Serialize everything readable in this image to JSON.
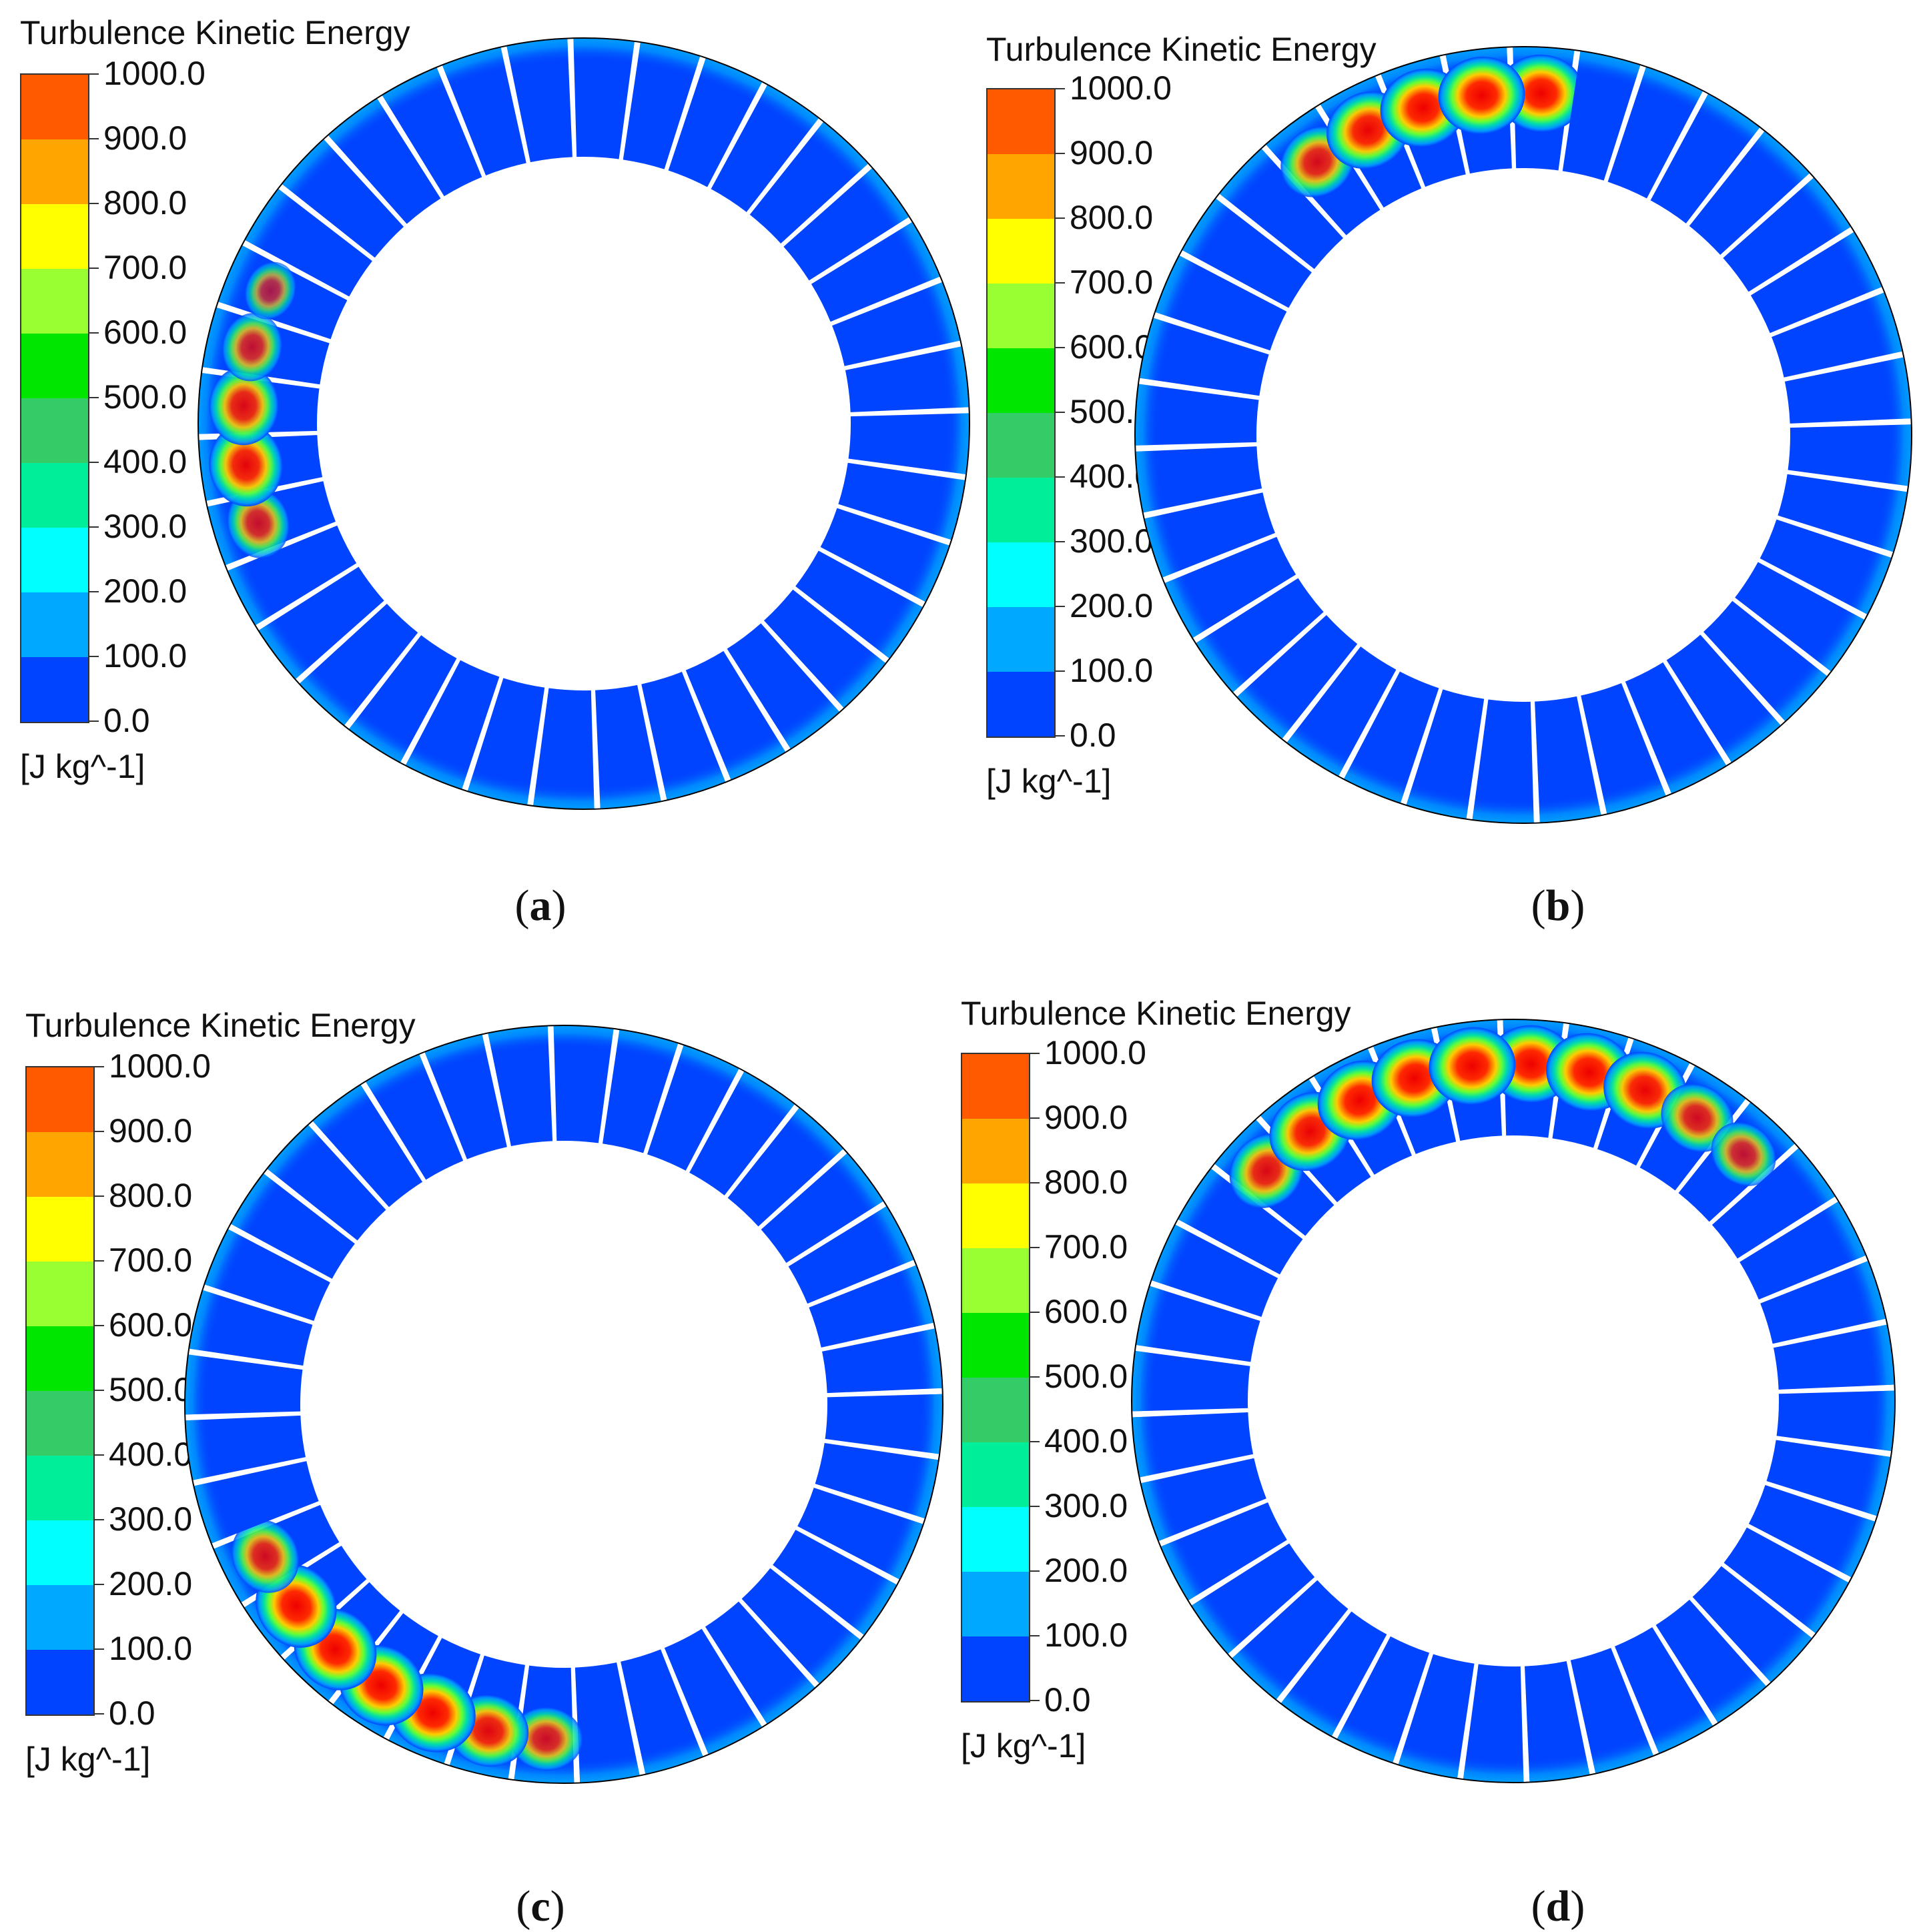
{
  "figure": {
    "panels": [
      {
        "id": "a",
        "legend_title": "Turbulence Kinetic Energy",
        "unit": "[J kg^-1]",
        "caption_letter": "a",
        "hot_sectors": [
          {
            "sector": 25,
            "intensity": 0.6
          },
          {
            "sector": 26,
            "intensity": 0.9
          },
          {
            "sector": 27,
            "intensity": 0.8
          },
          {
            "sector": 28,
            "intensity": 0.55
          },
          {
            "sector": 29,
            "intensity": 0.3
          }
        ]
      },
      {
        "id": "b",
        "legend_title": "Turbulence Kinetic Energy",
        "unit": "[J kg^-1]",
        "caption_letter": "b",
        "hot_sectors": [
          {
            "sector": 0,
            "intensity": 1.0
          },
          {
            "sector": 35,
            "intensity": 1.0
          },
          {
            "sector": 34,
            "intensity": 1.0
          },
          {
            "sector": 33,
            "intensity": 0.95
          },
          {
            "sector": 32,
            "intensity": 0.75
          }
        ]
      },
      {
        "id": "c",
        "legend_title": "Turbulence Kinetic Energy",
        "unit": "[J kg^-1]",
        "caption_letter": "c",
        "hot_sectors": [
          {
            "sector": 24,
            "intensity": 0.7
          },
          {
            "sector": 23,
            "intensity": 1.0
          },
          {
            "sector": 22,
            "intensity": 1.0
          },
          {
            "sector": 21,
            "intensity": 1.0
          },
          {
            "sector": 20,
            "intensity": 1.0
          },
          {
            "sector": 19,
            "intensity": 0.85
          },
          {
            "sector": 18,
            "intensity": 0.65
          }
        ]
      },
      {
        "id": "d",
        "legend_title": "Turbulence Kinetic Energy",
        "unit": "[J kg^-1]",
        "caption_letter": "d",
        "hot_sectors": [
          {
            "sector": 0,
            "intensity": 1.0
          },
          {
            "sector": 1,
            "intensity": 1.0
          },
          {
            "sector": 2,
            "intensity": 0.95
          },
          {
            "sector": 3,
            "intensity": 0.7
          },
          {
            "sector": 4,
            "intensity": 0.55
          },
          {
            "sector": 35,
            "intensity": 1.0
          },
          {
            "sector": 34,
            "intensity": 1.0
          },
          {
            "sector": 33,
            "intensity": 1.0
          },
          {
            "sector": 32,
            "intensity": 0.95
          },
          {
            "sector": 31,
            "intensity": 0.8
          }
        ]
      }
    ],
    "colorbar": {
      "ticks": [
        "1000.0",
        "900.0",
        "800.0",
        "700.0",
        "600.0",
        "500.0",
        "400.0",
        "300.0",
        "200.0",
        "100.0",
        "0.0"
      ],
      "colors_top_to_bottom": [
        "#ff3300",
        "#ff5a00",
        "#ffa500",
        "#ffff00",
        "#99ff33",
        "#00e600",
        "#33cc66",
        "#00ee99",
        "#00ffff",
        "#00a8ff",
        "#0044ff"
      ]
    },
    "ring_colors": {
      "base": "#0044ff",
      "edge": "#00b3ff",
      "gap": "#ffffff",
      "outline": "#000000"
    },
    "sector_count": 36
  }
}
